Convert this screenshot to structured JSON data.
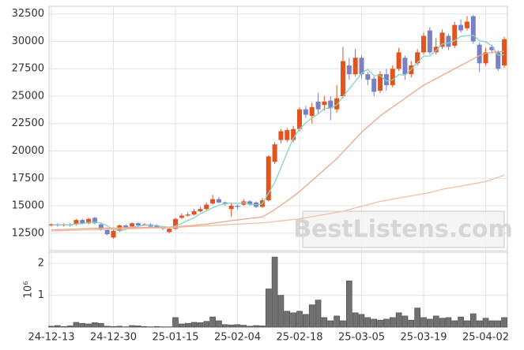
{
  "chart_data": [
    {
      "type": "candlestick",
      "ylim": [
        10900,
        33200
      ],
      "yticks": [
        12500,
        15000,
        17500,
        20000,
        22500,
        25000,
        27500,
        30000,
        32500
      ],
      "grid": true,
      "up_color": "#e2531e",
      "down_color": "#7b7fc4",
      "watermark": "BestListens.com",
      "open": [
        13200,
        13300,
        13200,
        13300,
        13300,
        13700,
        13400,
        13900,
        13300,
        12800,
        12100,
        12700,
        13200,
        13100,
        13400,
        13300,
        13300,
        13200,
        13000,
        12600,
        12900,
        13900,
        14100,
        14200,
        14500,
        14700,
        15200,
        15600,
        15300,
        14700,
        15000,
        15100,
        15400,
        15300,
        14900,
        15500,
        19000,
        21000,
        21000,
        21000,
        22000,
        23800,
        23200,
        24500,
        24200,
        24600,
        23800,
        25000,
        27800,
        27000,
        28500,
        27000,
        26600,
        25500,
        27000,
        26000,
        27500,
        28500,
        27000,
        28000,
        29000,
        31000,
        29000,
        29500,
        30500,
        29600,
        31500,
        31200,
        32300,
        29700,
        28000,
        29500,
        29000,
        27800
      ],
      "high": [
        13400,
        13400,
        13400,
        13400,
        13800,
        13800,
        13900,
        14000,
        13400,
        12900,
        12800,
        13300,
        13300,
        13500,
        13500,
        13400,
        13400,
        13300,
        13100,
        13000,
        13900,
        14300,
        14400,
        14700,
        14900,
        15300,
        16000,
        15800,
        15400,
        15200,
        15100,
        15600,
        15500,
        15400,
        15700,
        19600,
        20800,
        22000,
        22100,
        22300,
        24000,
        24100,
        24400,
        25300,
        25000,
        25000,
        26000,
        29500,
        28500,
        29300,
        28700,
        27200,
        26800,
        27300,
        27500,
        27800,
        29400,
        28700,
        28200,
        29300,
        30800,
        31300,
        30300,
        31100,
        30700,
        31800,
        32000,
        32300,
        32400,
        29900,
        29400,
        29700,
        29200,
        30400
      ],
      "low": [
        13100,
        13100,
        13100,
        13100,
        13200,
        13300,
        13300,
        13300,
        12700,
        12300,
        12000,
        12600,
        12900,
        13000,
        13100,
        13200,
        13000,
        12900,
        12800,
        12500,
        12800,
        13800,
        14000,
        14100,
        14400,
        14600,
        15100,
        15200,
        15000,
        14000,
        14700,
        15000,
        15000,
        14800,
        14800,
        15400,
        18800,
        20700,
        20800,
        20800,
        21800,
        23000,
        22500,
        23400,
        23700,
        22800,
        23500,
        24800,
        26500,
        26800,
        26600,
        26000,
        25000,
        25300,
        25500,
        25800,
        27300,
        26500,
        26700,
        27800,
        28800,
        28800,
        28800,
        29300,
        29200,
        29400,
        30800,
        31000,
        29800,
        27200,
        27800,
        28900,
        27300,
        27600
      ],
      "close": [
        13300,
        13200,
        13300,
        13200,
        13700,
        13400,
        13800,
        13400,
        12800,
        12400,
        12700,
        13200,
        13000,
        13400,
        13200,
        13300,
        13100,
        13000,
        12900,
        12900,
        13800,
        14100,
        14200,
        14500,
        14700,
        15100,
        15600,
        15300,
        15200,
        15000,
        14900,
        15400,
        15100,
        14900,
        15500,
        19500,
        20600,
        21800,
        21900,
        22000,
        23800,
        23300,
        24000,
        23800,
        24500,
        23900,
        24800,
        28200,
        27000,
        28500,
        27000,
        26500,
        25400,
        27000,
        26000,
        27500,
        29000,
        27000,
        27800,
        29000,
        30500,
        29000,
        29500,
        30800,
        29500,
        31500,
        31000,
        31800,
        30000,
        28000,
        29000,
        29200,
        27500,
        30200
      ],
      "series": [
        {
          "color": "#86d3c2",
          "values": [
            13300,
            13250,
            13270,
            13250,
            13340,
            13360,
            13480,
            13500,
            13420,
            13160,
            12820,
            12700,
            12820,
            13060,
            13100,
            13220,
            13240,
            13200,
            13100,
            13040,
            13160,
            13380,
            13660,
            13900,
            14260,
            14520,
            14820,
            15040,
            15180,
            15240,
            15200,
            15280,
            15120,
            15100,
            15160,
            16160,
            17120,
            18460,
            19860,
            21160,
            22020,
            22560,
            23000,
            23380,
            23880,
            23900,
            24200,
            24960,
            25660,
            26360,
            27100,
            27440,
            26880,
            26880,
            26380,
            26480,
            26980,
            26900,
            27460,
            28060,
            28660,
            28660,
            29160,
            29760,
            29860,
            30060,
            30460,
            30520,
            30560,
            30060,
            29960,
            29600,
            28740,
            28780
          ]
        },
        {
          "color": "#e9a789",
          "values": [
            12800,
            12820,
            12840,
            12860,
            12880,
            12900,
            12920,
            12940,
            12950,
            12960,
            12970,
            12980,
            12990,
            13000,
            13000,
            13010,
            13020,
            13030,
            13040,
            13050,
            13080,
            13120,
            13160,
            13200,
            13260,
            13320,
            13400,
            13480,
            13560,
            13640,
            13700,
            13780,
            13850,
            13900,
            13980,
            14300,
            14650,
            15050,
            15450,
            15850,
            16300,
            16800,
            17300,
            17800,
            18300,
            18800,
            19300,
            19900,
            20500,
            21100,
            21700,
            22200,
            22700,
            23200,
            23600,
            24000,
            24400,
            24800,
            25200,
            25600,
            26000,
            26300,
            26600,
            26900,
            27200,
            27500,
            27800,
            28100,
            28400,
            28700,
            28900,
            29000,
            29050,
            29100
          ]
        },
        {
          "color": "#efbfa8",
          "values": [
            12700,
            12720,
            12730,
            12750,
            12760,
            12780,
            12800,
            12810,
            12830,
            12840,
            12860,
            12870,
            12890,
            12900,
            12920,
            12930,
            12950,
            12960,
            12980,
            13000,
            13020,
            13050,
            13080,
            13110,
            13140,
            13170,
            13200,
            13230,
            13260,
            13290,
            13320,
            13350,
            13380,
            13410,
            13440,
            13500,
            13560,
            13620,
            13680,
            13740,
            13800,
            13900,
            14000,
            14100,
            14200,
            14300,
            14400,
            14500,
            14650,
            14800,
            14950,
            15100,
            15250,
            15400,
            15500,
            15600,
            15700,
            15800,
            15900,
            16000,
            16100,
            16200,
            16350,
            16500,
            16600,
            16700,
            16800,
            16900,
            17000,
            17100,
            17200,
            17400,
            17600,
            17800
          ]
        }
      ]
    },
    {
      "type": "bar",
      "y_label": "10⁶",
      "ylim": [
        0,
        2.35
      ],
      "yticks": [
        1,
        2
      ],
      "grid": true,
      "color": "#707070",
      "categories": [
        "24-12-13",
        null,
        null,
        null,
        null,
        null,
        null,
        null,
        null,
        null,
        "24-12-30",
        null,
        null,
        null,
        null,
        null,
        null,
        null,
        null,
        null,
        "25-01-15",
        null,
        null,
        null,
        null,
        null,
        null,
        null,
        null,
        null,
        "25-02-04",
        null,
        null,
        null,
        null,
        null,
        null,
        null,
        null,
        null,
        "25-02-18",
        null,
        null,
        null,
        null,
        null,
        null,
        null,
        null,
        null,
        "25-03-05",
        null,
        null,
        null,
        null,
        null,
        null,
        null,
        null,
        null,
        "25-03-19",
        null,
        null,
        null,
        null,
        null,
        null,
        null,
        null,
        null,
        "25-04-02",
        null,
        null,
        null
      ],
      "values": [
        0.03,
        0.05,
        0.02,
        0.04,
        0.15,
        0.12,
        0.1,
        0.14,
        0.12,
        0.03,
        0.02,
        0.03,
        0.01,
        0.05,
        0.04,
        0.02,
        0.01,
        0.02,
        0.01,
        0.01,
        0.3,
        0.1,
        0.12,
        0.15,
        0.14,
        0.18,
        0.32,
        0.2,
        0.08,
        0.07,
        0.08,
        0.06,
        0.03,
        0.05,
        0.04,
        1.2,
        2.2,
        1.0,
        0.5,
        0.45,
        0.5,
        0.4,
        0.7,
        0.85,
        0.3,
        0.2,
        0.35,
        0.2,
        1.45,
        0.45,
        0.4,
        0.3,
        0.25,
        0.22,
        0.25,
        0.3,
        0.45,
        0.35,
        0.22,
        0.6,
        0.3,
        0.25,
        0.35,
        0.28,
        0.3,
        0.2,
        0.32,
        0.2,
        0.42,
        0.2,
        0.28,
        0.2,
        0.2,
        0.3
      ]
    }
  ]
}
